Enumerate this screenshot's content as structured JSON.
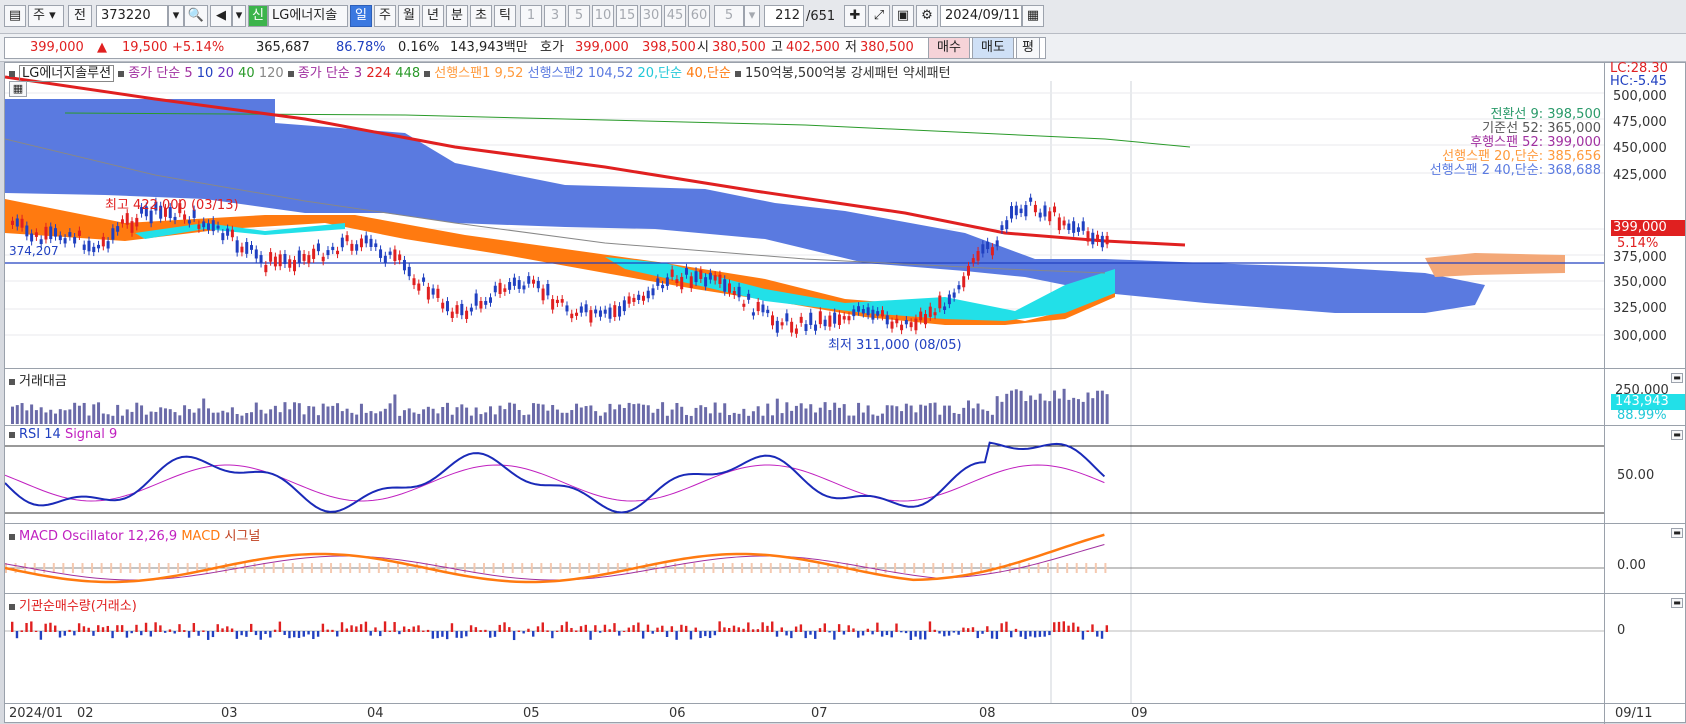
{
  "toolbar": {
    "period_label": "주",
    "prev_label": "전",
    "code": "373220",
    "stock_name": "LG에너지솔",
    "new_badge": "신",
    "day": "일",
    "week": "주",
    "month": "월",
    "year": "년",
    "minute": "분",
    "second": "초",
    "tick": "틱",
    "n1": "1",
    "n3": "3",
    "n5": "5",
    "n10": "10",
    "n15": "15",
    "n30": "30",
    "n45": "45",
    "n60": "60",
    "count": "5",
    "page_current": "212",
    "page_total": "/651",
    "date": "2024/09/11"
  },
  "quote": {
    "price": "399,000",
    "change_arrow": "▲",
    "change": "19,500",
    "change_pct": "+5.14%",
    "volume": "365,687",
    "rate1": "86.78%",
    "rate2": "0.16%",
    "amount": "143,943백만",
    "bid_label": "호가",
    "ask_price": "399,000",
    "bid_price": "398,500",
    "open_label": "시",
    "open": "380,500",
    "high_label": "고",
    "high": "402,500",
    "low_label": "저",
    "low": "380,500",
    "buy": "매수",
    "sell": "매도",
    "eval": "평"
  },
  "legend": {
    "name": "LG에너지솔루션",
    "ma": "종가 단순",
    "ma5": "5",
    "ma10": "10",
    "ma20": "20",
    "ma40": "40",
    "ma120": "120",
    "ma_b": "종가 단순 3",
    "ma224": "224",
    "ma448": "448",
    "span1": "선행스팬1 9,52",
    "span2": "선행스팬2 104,52",
    "s20": "20,단순",
    "s40": "40,단순",
    "pattern": "150억봉,500억봉 강세패턴",
    "pattern2": "약세패턴"
  },
  "price_axis": [
    "500,000",
    "475,000",
    "450,000",
    "425,000",
    "375,000",
    "350,000",
    "325,000",
    "300,000"
  ],
  "lc": "LC:28.30",
  "hc": "HC:-5.45",
  "current_price_box": "399,000",
  "current_pct": "5.14%",
  "ichimoku_values": [
    {
      "label": "전환선 9: 398,500",
      "color": "#2a9a6a"
    },
    {
      "label": "기준선 52: 365,000",
      "color": "#555"
    },
    {
      "label": "후행스팬 52: 399,000",
      "color": "#a030a0"
    },
    {
      "label": "선행스팬 20,단순: 385,656",
      "color": "#ff9a3c"
    },
    {
      "label": "선행스팬 2 40,단순: 368,688",
      "color": "#5a7ae0"
    }
  ],
  "annotations": {
    "high": "최고 422,000 (03/13)",
    "low": "최저 311,000 (08/05)",
    "left_price": "374,207"
  },
  "volume_pane": {
    "title": "거래대금",
    "axis": "250,000",
    "value": "143,943",
    "pct": "88.99%"
  },
  "rsi_pane": {
    "title": "RSI 14",
    "signal": "Signal 9",
    "axis": "50.00"
  },
  "macd_pane": {
    "title": "MACD Oscillator 12,26,9",
    "macd": "MACD",
    "signal": "시그널",
    "axis": "0.00"
  },
  "inst_pane": {
    "title": "기관순매수량(거래소)",
    "axis": "0"
  },
  "time_axis": [
    "2024/01",
    "02",
    "03",
    "04",
    "05",
    "06",
    "07",
    "08",
    "09"
  ],
  "time_axis_right": "09/11",
  "colors": {
    "up": "#e02020",
    "down": "#2040c0",
    "cloud_blue": "#5a7ae0",
    "cloud_orange": "#ff7a10",
    "cyan": "#22e0e8"
  }
}
